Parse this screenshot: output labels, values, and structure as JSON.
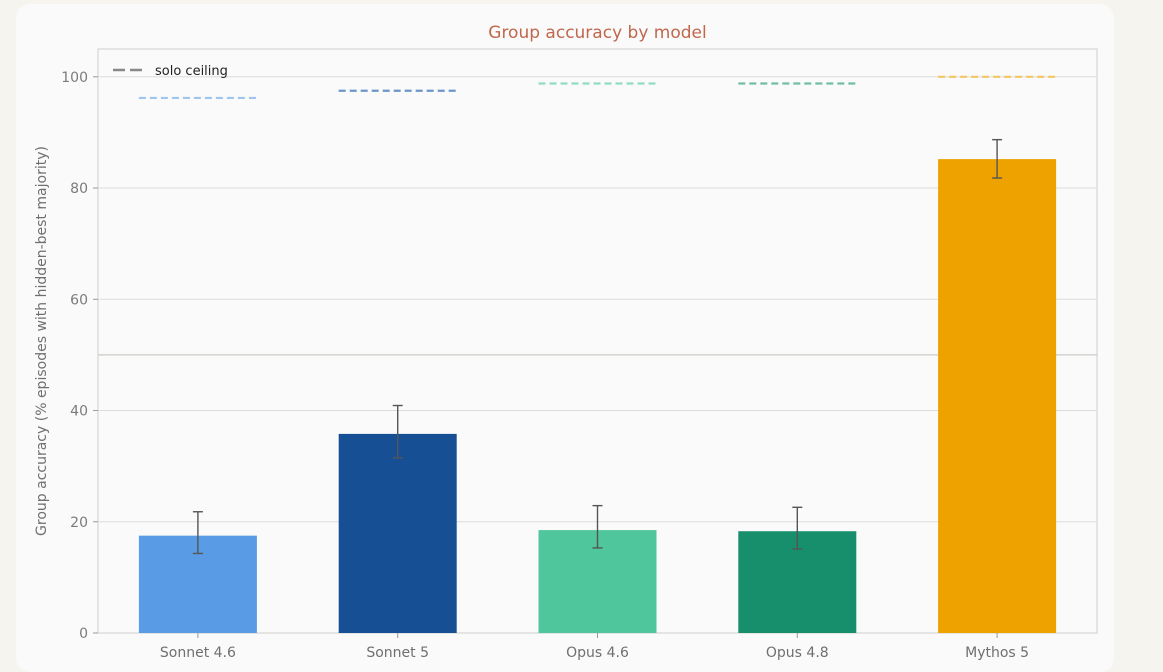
{
  "chart_data": {
    "type": "bar",
    "title": "Group accuracy by model",
    "xlabel": "",
    "ylabel": "Group accuracy (% episodes with hidden-best majority)",
    "ylim": [
      0,
      105
    ],
    "yticks": [
      0,
      20,
      40,
      60,
      80,
      100
    ],
    "grid": true,
    "reference_line": 50,
    "legend": {
      "position": "top-left",
      "entries": [
        "solo ceiling"
      ]
    },
    "categories": [
      "Sonnet 4.6",
      "Sonnet 5",
      "Opus 4.6",
      "Opus 4.8",
      "Mythos 5"
    ],
    "values": [
      17.5,
      35.8,
      18.5,
      18.3,
      85.2
    ],
    "error_low": [
      14.3,
      31.5,
      15.3,
      15.1,
      81.8
    ],
    "error_high": [
      21.8,
      40.9,
      22.9,
      22.6,
      88.7
    ],
    "solo_ceiling": [
      96.2,
      97.5,
      98.8,
      98.8,
      100.0
    ],
    "colors": [
      "#5a9be6",
      "#174f94",
      "#4fc69c",
      "#178f6c",
      "#eda200"
    ],
    "ceiling_colors": [
      "#9fc5ef",
      "#6d96c8",
      "#92dcc2",
      "#72bda6",
      "#f4c65f"
    ],
    "title_color": "#c0674c"
  }
}
